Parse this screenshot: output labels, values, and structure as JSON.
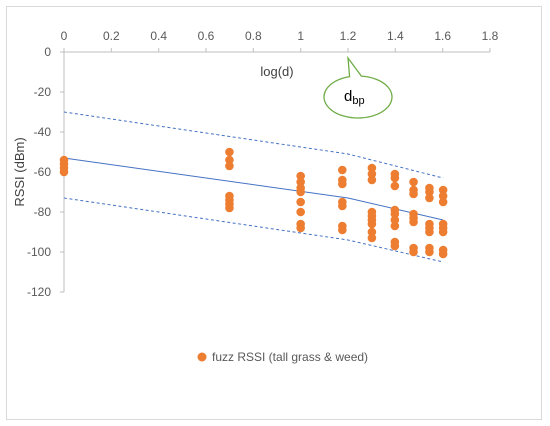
{
  "chart_data": {
    "type": "scatter",
    "title": "",
    "xlabel": "log(d)",
    "ylabel": "RSSI (dBm)",
    "xlim": [
      0,
      1.8
    ],
    "ylim": [
      -120,
      0
    ],
    "x_ticks": [
      "0",
      "0.2",
      "0.4",
      "0.6",
      "0.8",
      "1",
      "1.2",
      "1.4",
      "1.6",
      "1.8"
    ],
    "y_ticks": [
      "0",
      "-20",
      "-40",
      "-60",
      "-80",
      "-100",
      "-120"
    ],
    "x_tick_values": [
      0,
      0.2,
      0.4,
      0.6,
      0.8,
      1.0,
      1.2,
      1.4,
      1.6,
      1.8
    ],
    "y_tick_values": [
      0,
      -20,
      -40,
      -60,
      -80,
      -100,
      -120
    ],
    "grid": false,
    "legend_position": "bottom",
    "series": [
      {
        "name": "fuzz RSSI (tall grass & weed)",
        "color": "#ed7d31",
        "points": [
          [
            0,
            -54
          ],
          [
            0,
            -56
          ],
          [
            0,
            -58
          ],
          [
            0,
            -60
          ],
          [
            0.699,
            -50
          ],
          [
            0.699,
            -54
          ],
          [
            0.699,
            -57
          ],
          [
            0.699,
            -72
          ],
          [
            0.699,
            -74
          ],
          [
            0.699,
            -76
          ],
          [
            0.699,
            -78
          ],
          [
            1.0,
            -62
          ],
          [
            1.0,
            -65
          ],
          [
            1.0,
            -68
          ],
          [
            1.0,
            -70
          ],
          [
            1.0,
            -75
          ],
          [
            1.0,
            -80
          ],
          [
            1.0,
            -86
          ],
          [
            1.0,
            -88
          ],
          [
            1.176,
            -59
          ],
          [
            1.176,
            -64
          ],
          [
            1.176,
            -66
          ],
          [
            1.176,
            -75
          ],
          [
            1.176,
            -77
          ],
          [
            1.176,
            -87
          ],
          [
            1.176,
            -89
          ],
          [
            1.301,
            -58
          ],
          [
            1.301,
            -61
          ],
          [
            1.301,
            -64
          ],
          [
            1.301,
            -80
          ],
          [
            1.301,
            -82
          ],
          [
            1.301,
            -84
          ],
          [
            1.301,
            -86
          ],
          [
            1.301,
            -90
          ],
          [
            1.301,
            -93
          ],
          [
            1.398,
            -61
          ],
          [
            1.398,
            -63
          ],
          [
            1.398,
            -67
          ],
          [
            1.398,
            -79
          ],
          [
            1.398,
            -81
          ],
          [
            1.398,
            -84
          ],
          [
            1.398,
            -87
          ],
          [
            1.398,
            -95
          ],
          [
            1.398,
            -97
          ],
          [
            1.477,
            -65
          ],
          [
            1.477,
            -69
          ],
          [
            1.477,
            -71
          ],
          [
            1.477,
            -81
          ],
          [
            1.477,
            -83
          ],
          [
            1.477,
            -85
          ],
          [
            1.477,
            -98
          ],
          [
            1.477,
            -100
          ],
          [
            1.544,
            -68
          ],
          [
            1.544,
            -70
          ],
          [
            1.544,
            -73
          ],
          [
            1.544,
            -86
          ],
          [
            1.544,
            -88
          ],
          [
            1.544,
            -90
          ],
          [
            1.544,
            -98
          ],
          [
            1.544,
            -100
          ],
          [
            1.602,
            -69
          ],
          [
            1.602,
            -72
          ],
          [
            1.602,
            -75
          ],
          [
            1.602,
            -86
          ],
          [
            1.602,
            -88
          ],
          [
            1.602,
            -90
          ],
          [
            1.602,
            -99
          ],
          [
            1.602,
            -101
          ]
        ]
      }
    ],
    "model_line": {
      "color": "#4472c4",
      "points": [
        [
          0,
          -53
        ],
        [
          1.2,
          -73
        ],
        [
          1.602,
          -84
        ]
      ]
    },
    "upper_bound": {
      "color": "#4472c4",
      "points": [
        [
          0,
          -30
        ],
        [
          1.2,
          -51
        ],
        [
          1.602,
          -63
        ]
      ]
    },
    "lower_bound": {
      "color": "#4472c4",
      "points": [
        [
          0,
          -73
        ],
        [
          1.2,
          -94
        ],
        [
          1.602,
          -105
        ]
      ]
    },
    "callout": {
      "text_main": "d",
      "text_sub": "bp",
      "anchor": [
        1.2,
        0
      ],
      "border_color": "#70ad47"
    }
  }
}
